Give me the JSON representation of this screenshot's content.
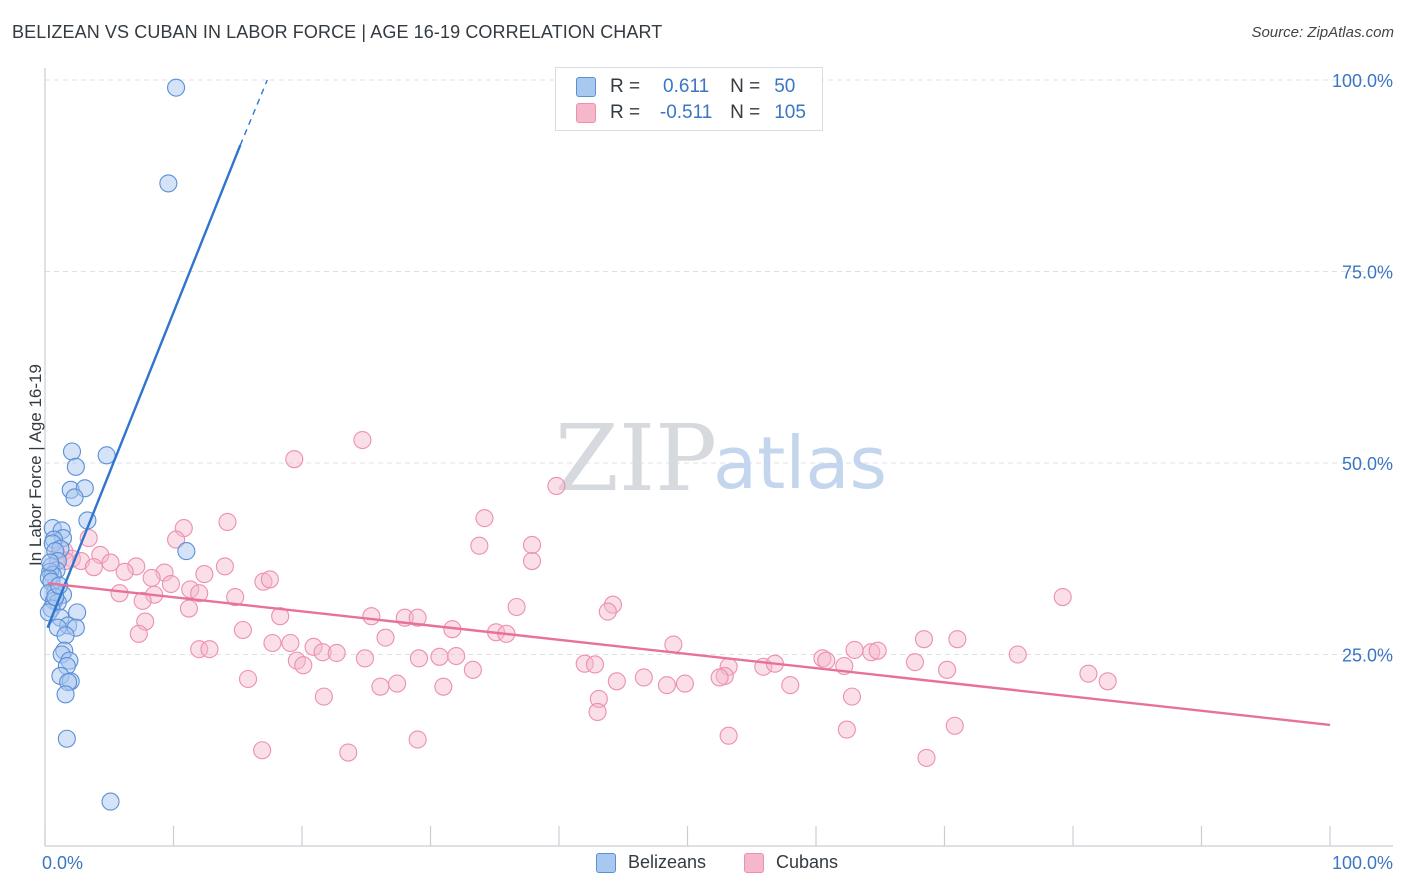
{
  "header": {
    "title": "BELIZEAN VS CUBAN IN LABOR FORCE | AGE 16-19 CORRELATION CHART",
    "source": "Source: ZipAtlas.com"
  },
  "watermark": {
    "zip": "ZIP",
    "atlas": "atlas"
  },
  "colors": {
    "blue_fill": "#a9c8ef",
    "blue_stroke": "#5b8fd6",
    "blue_line": "#2f74cf",
    "pink_fill": "#f5b8cb",
    "pink_stroke": "#ee8fad",
    "pink_line": "#e8719a",
    "value_text": "#3a76c4"
  },
  "legend": {
    "rows": [
      {
        "r_label": "R =",
        "r_value": "0.611",
        "n_label": "N =",
        "n_value": "50"
      },
      {
        "r_label": "R =",
        "r_value": "-0.511",
        "n_label": "N =",
        "n_value": "105"
      }
    ],
    "bottom": [
      "Belizeans",
      "Cubans"
    ]
  },
  "chart_data": {
    "type": "scatter",
    "title": "BELIZEAN VS CUBAN IN LABOR FORCE | AGE 16-19 CORRELATION CHART",
    "xlabel": "",
    "ylabel": "In Labor Force | Age 16-19",
    "xlim": [
      0,
      100
    ],
    "ylim": [
      0,
      100
    ],
    "x_tick_labels": [
      "0.0%",
      "100.0%"
    ],
    "y_tick_labels": [
      "25.0%",
      "50.0%",
      "75.0%",
      "100.0%"
    ],
    "y_ticks": [
      25,
      50,
      75,
      100
    ],
    "grid": true,
    "series": [
      {
        "name": "Belizeans",
        "r": 0.611,
        "n": 50,
        "trend": {
          "x0": 0.2,
          "y0": 28.5,
          "x1": 15.2,
          "y1": 91.5,
          "dash_to_x": 17.3,
          "dash_to_y": 100
        },
        "points": [
          [
            10.2,
            99.0
          ],
          [
            9.6,
            86.5
          ],
          [
            2.1,
            51.5
          ],
          [
            4.8,
            51.0
          ],
          [
            2.4,
            49.5
          ],
          [
            2.0,
            46.5
          ],
          [
            3.1,
            46.7
          ],
          [
            2.3,
            45.5
          ],
          [
            3.3,
            42.5
          ],
          [
            11.0,
            38.5
          ],
          [
            0.6,
            41.5
          ],
          [
            1.3,
            41.2
          ],
          [
            1.4,
            40.2
          ],
          [
            0.7,
            40.0
          ],
          [
            0.6,
            39.5
          ],
          [
            1.2,
            38.8
          ],
          [
            0.8,
            38.5
          ],
          [
            1.0,
            37.2
          ],
          [
            0.5,
            36.5
          ],
          [
            0.9,
            36.0
          ],
          [
            0.4,
            35.8
          ],
          [
            0.6,
            35.4
          ],
          [
            0.3,
            35.0
          ],
          [
            0.5,
            34.5
          ],
          [
            0.8,
            33.2
          ],
          [
            0.3,
            33.0
          ],
          [
            1.4,
            32.8
          ],
          [
            0.7,
            32.0
          ],
          [
            1.0,
            31.8
          ],
          [
            0.5,
            31.0
          ],
          [
            0.3,
            30.5
          ],
          [
            2.5,
            30.5
          ],
          [
            1.2,
            29.8
          ],
          [
            1.8,
            28.8
          ],
          [
            2.4,
            28.5
          ],
          [
            1.0,
            28.5
          ],
          [
            1.6,
            27.5
          ],
          [
            1.5,
            25.5
          ],
          [
            1.3,
            25.0
          ],
          [
            1.9,
            24.2
          ],
          [
            1.7,
            23.5
          ],
          [
            1.2,
            22.2
          ],
          [
            2.0,
            21.5
          ],
          [
            1.8,
            21.4
          ],
          [
            1.6,
            19.8
          ],
          [
            1.7,
            14.0
          ],
          [
            5.1,
            5.8
          ],
          [
            0.8,
            32.5
          ],
          [
            1.1,
            34.0
          ],
          [
            0.4,
            37.0
          ]
        ]
      },
      {
        "name": "Cubans",
        "r": -0.511,
        "n": 105,
        "trend": {
          "x0": 0.2,
          "y0": 34.3,
          "x1": 100,
          "y1": 15.8
        },
        "points": [
          [
            24.7,
            53.0
          ],
          [
            19.4,
            50.5
          ],
          [
            39.8,
            47.0
          ],
          [
            34.2,
            42.8
          ],
          [
            10.8,
            41.5
          ],
          [
            14.2,
            42.3
          ],
          [
            10.2,
            40.0
          ],
          [
            33.8,
            39.2
          ],
          [
            37.9,
            39.3
          ],
          [
            3.4,
            40.2
          ],
          [
            1.5,
            38.5
          ],
          [
            2.1,
            37.5
          ],
          [
            2.8,
            37.2
          ],
          [
            4.3,
            38.0
          ],
          [
            5.1,
            37.0
          ],
          [
            3.8,
            36.4
          ],
          [
            7.1,
            36.5
          ],
          [
            9.3,
            35.7
          ],
          [
            12.4,
            35.5
          ],
          [
            14.0,
            36.5
          ],
          [
            1.0,
            37.8
          ],
          [
            1.6,
            37.2
          ],
          [
            6.2,
            35.8
          ],
          [
            8.3,
            35.0
          ],
          [
            9.8,
            34.2
          ],
          [
            17.0,
            34.5
          ],
          [
            17.5,
            34.8
          ],
          [
            5.8,
            33.0
          ],
          [
            8.5,
            32.8
          ],
          [
            11.3,
            33.5
          ],
          [
            12.0,
            33.0
          ],
          [
            14.8,
            32.5
          ],
          [
            7.6,
            32.0
          ],
          [
            11.2,
            31.0
          ],
          [
            36.7,
            31.2
          ],
          [
            44.2,
            31.5
          ],
          [
            18.3,
            30.0
          ],
          [
            25.4,
            30.0
          ],
          [
            28.0,
            29.8
          ],
          [
            29.0,
            29.8
          ],
          [
            43.8,
            30.6
          ],
          [
            7.8,
            29.3
          ],
          [
            31.7,
            28.3
          ],
          [
            35.1,
            27.9
          ],
          [
            35.9,
            27.7
          ],
          [
            7.3,
            27.7
          ],
          [
            15.4,
            28.2
          ],
          [
            26.5,
            27.2
          ],
          [
            17.7,
            26.5
          ],
          [
            19.1,
            26.5
          ],
          [
            20.9,
            26.0
          ],
          [
            21.6,
            25.3
          ],
          [
            22.7,
            25.2
          ],
          [
            12.0,
            25.7
          ],
          [
            12.8,
            25.7
          ],
          [
            29.1,
            24.5
          ],
          [
            30.7,
            24.7
          ],
          [
            32.0,
            24.8
          ],
          [
            24.9,
            24.5
          ],
          [
            19.6,
            24.2
          ],
          [
            20.1,
            23.6
          ],
          [
            33.3,
            23.0
          ],
          [
            42.0,
            23.8
          ],
          [
            42.8,
            23.7
          ],
          [
            48.9,
            26.3
          ],
          [
            53.2,
            23.4
          ],
          [
            52.9,
            22.2
          ],
          [
            44.5,
            21.5
          ],
          [
            46.6,
            22.0
          ],
          [
            49.8,
            21.2
          ],
          [
            55.9,
            23.4
          ],
          [
            60.5,
            24.5
          ],
          [
            63.0,
            25.6
          ],
          [
            64.3,
            25.3
          ],
          [
            64.8,
            25.5
          ],
          [
            68.4,
            27.0
          ],
          [
            71.0,
            27.0
          ],
          [
            75.7,
            25.0
          ],
          [
            67.7,
            24.0
          ],
          [
            70.2,
            23.0
          ],
          [
            62.2,
            23.5
          ],
          [
            60.8,
            24.2
          ],
          [
            56.8,
            23.8
          ],
          [
            52.5,
            22.0
          ],
          [
            48.4,
            21.0
          ],
          [
            58.0,
            21.0
          ],
          [
            62.8,
            19.5
          ],
          [
            43.1,
            19.2
          ],
          [
            26.1,
            20.8
          ],
          [
            21.7,
            19.5
          ],
          [
            15.8,
            21.8
          ],
          [
            27.4,
            21.2
          ],
          [
            31.0,
            20.8
          ],
          [
            81.2,
            22.5
          ],
          [
            82.7,
            21.5
          ],
          [
            79.2,
            32.5
          ],
          [
            43.0,
            17.5
          ],
          [
            53.2,
            14.4
          ],
          [
            62.4,
            15.2
          ],
          [
            70.8,
            15.7
          ],
          [
            16.9,
            12.5
          ],
          [
            23.6,
            12.2
          ],
          [
            29.0,
            13.9
          ],
          [
            68.6,
            11.5
          ],
          [
            37.9,
            37.2
          ]
        ]
      }
    ]
  }
}
